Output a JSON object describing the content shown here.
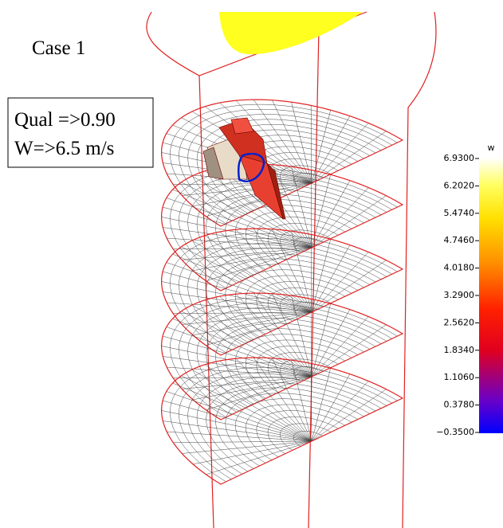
{
  "annotations": {
    "case": "Case 1",
    "quality": "Qual =>0.90",
    "velocity": "W=>6.5 m/s"
  },
  "colorbar": {
    "title": "w",
    "ticks": [
      "6.9300",
      "6.2020",
      "5.4740",
      "4.7460",
      "4.0180",
      "3.2900",
      "2.5620",
      "1.8340",
      "1.1060",
      "0.3780",
      "−0.3500"
    ]
  }
}
